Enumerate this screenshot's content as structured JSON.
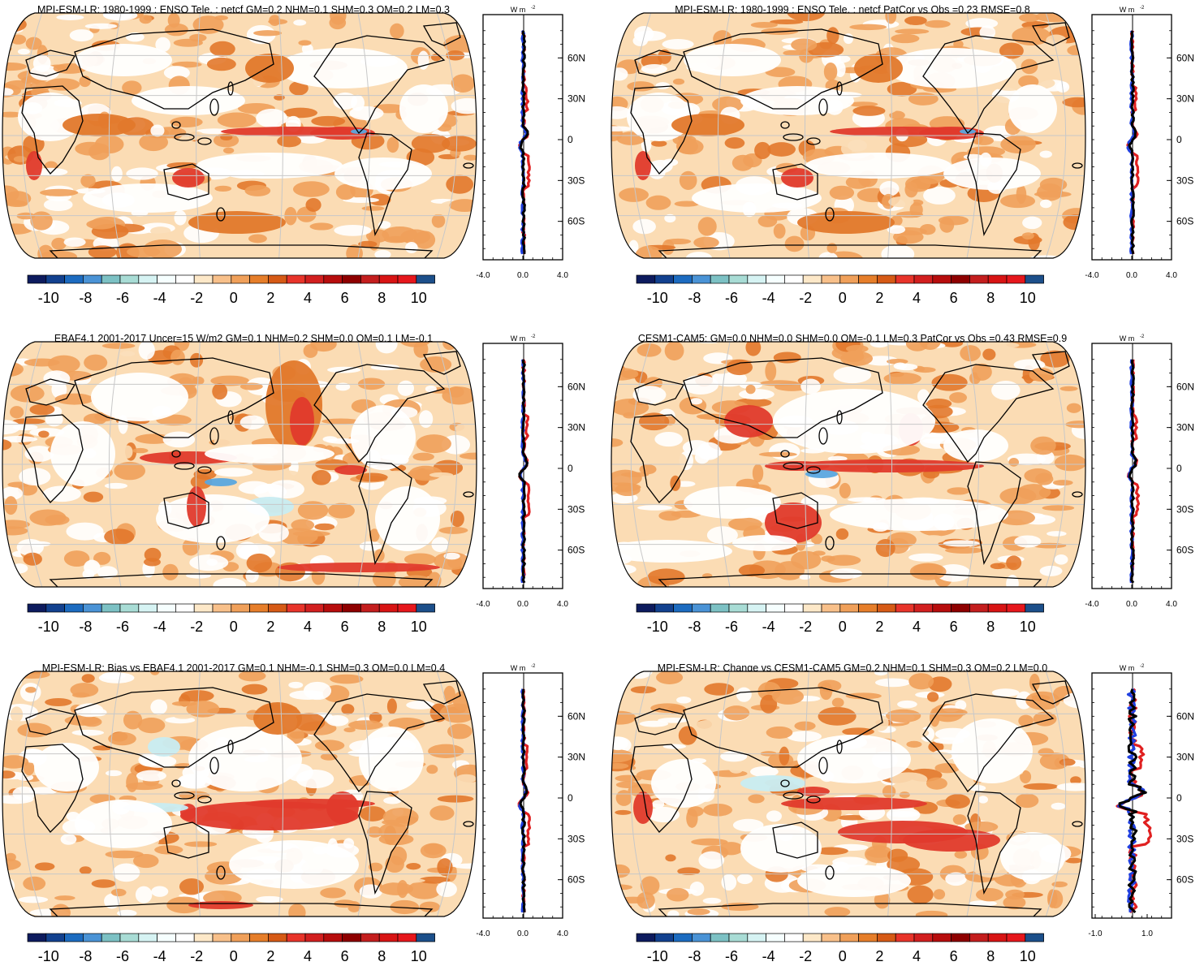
{
  "colorbar": {
    "colors": [
      "#0d1b5e",
      "#12418f",
      "#1c6bc0",
      "#4a93d6",
      "#7cc1c4",
      "#a8dcd5",
      "#d6f3f3",
      "#f6ffff",
      "#ffffff",
      "#fde8c8",
      "#f8c08a",
      "#f0a05a",
      "#e67e2a",
      "#d65a16",
      "#e8342a",
      "#d21f1f",
      "#b70d0d",
      "#8e0000",
      "#c41e1e",
      "#d81414",
      "#e6171c",
      "#1c4f8a"
    ],
    "tick_labels": [
      "-10",
      "-8",
      "-6",
      "-4",
      "-2",
      "0",
      "2",
      "4",
      "6",
      "8",
      "10"
    ]
  },
  "map_colors": {
    "ocean_base": "#fbdcb4",
    "light": "#ffffff",
    "orange": "#f0a05a",
    "dark_orange": "#e2782b",
    "red": "#e03a2c",
    "blue": "#5aa7df",
    "light_blue": "#c8ecf2",
    "coast": "#000000",
    "grid": "#c8c8c8"
  },
  "panels": [
    {
      "id": "p1",
      "title": "MPI-ESM-LR: 1980-1999 : ENSO Tele. : netcf GM=0.2 NHM=0.1 SHM=0.3 OM=0.2 LM=0.3",
      "unit": "W m",
      "unit_sup": "-2",
      "lat_labels": [
        "60N",
        "30N",
        "0",
        "30S",
        "60S"
      ],
      "x_labels": [
        "-4.0",
        "0.0",
        "4.0"
      ],
      "pattern": "enso"
    },
    {
      "id": "p2",
      "title": "MPI-ESM-LR: 1980-1999 : ENSO Tele. : netcf PatCor vs Obs =0.23 RMSE=0.8",
      "unit": "W m",
      "unit_sup": "-2",
      "lat_labels": [
        "60N",
        "30N",
        "0",
        "30S",
        "60S"
      ],
      "x_labels": [
        "-4.0",
        "0.0",
        "4.0"
      ],
      "pattern": "enso"
    },
    {
      "id": "p3",
      "title": "EBAF4.1 2001-2017 Uncer=15 W/m2 GM=0.1 NHM=0.2 SHM=0.0 OM=0.1 LM=-0.1",
      "unit": "W m",
      "unit_sup": "-2",
      "lat_labels": [
        "60N",
        "30N",
        "0",
        "30S",
        "60S"
      ],
      "x_labels": [
        "-4.0",
        "0.0",
        "4.0"
      ],
      "pattern": "obs"
    },
    {
      "id": "p4",
      "title": "CESM1-CAM5: GM=0.0 NHM=0.0 SHM=0.0 OM=-0.1 LM=0.3 PatCor vs Obs =0.43 RMSE=0.9",
      "unit": "W m",
      "unit_sup": "-2",
      "lat_labels": [
        "60N",
        "30N",
        "0",
        "30S",
        "60S"
      ],
      "x_labels": [
        "-4.0",
        "0.0",
        "4.0"
      ],
      "pattern": "cesm"
    },
    {
      "id": "p5",
      "title": "MPI-ESM-LR: Bias vs EBAF4.1 2001-2017 GM=0.1 NHM=-0.1 SHM=0.3 OM=0.0 LM=0.4",
      "unit": "W m",
      "unit_sup": "-2",
      "lat_labels": [
        "60N",
        "30N",
        "0",
        "30S",
        "60S"
      ],
      "x_labels": [
        "-4.0",
        "0.0",
        "4.0"
      ],
      "pattern": "bias"
    },
    {
      "id": "p6",
      "title": "MPI-ESM-LR: Change vs CESM1-CAM5 GM=0.2 NHM=0.1 SHM=0.3 OM=0.2 LM=0.0",
      "unit": "W m",
      "unit_sup": "-2",
      "lat_labels": [
        "60N",
        "30N",
        "0",
        "30S",
        "60S"
      ],
      "x_labels": [
        "-1.0",
        "1.0"
      ],
      "pattern": "change"
    }
  ]
}
